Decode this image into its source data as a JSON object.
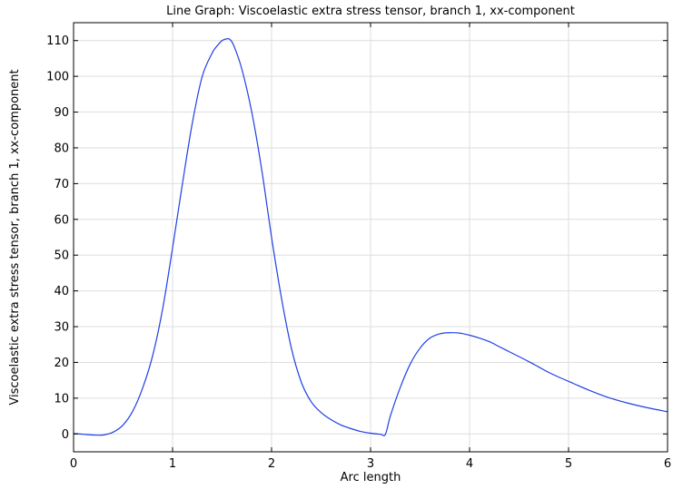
{
  "chart_data": {
    "type": "line",
    "title": "Line Graph: Viscoelastic extra stress tensor, branch 1, xx-component",
    "xlabel": "Arc length",
    "ylabel": "Viscoelastic extra stress tensor, branch 1, xx-component",
    "xlim": [
      0,
      6
    ],
    "ylim": [
      -5,
      115
    ],
    "x_ticks": [
      0,
      1,
      2,
      3,
      4,
      5,
      6
    ],
    "y_ticks": [
      0,
      10,
      20,
      30,
      40,
      50,
      60,
      70,
      80,
      90,
      100,
      110
    ],
    "grid": true,
    "legend": "none",
    "series": [
      {
        "color": "#1f3fe6",
        "x": [
          0,
          0.1,
          0.2,
          0.3,
          0.4,
          0.5,
          0.6,
          0.7,
          0.8,
          0.9,
          1.0,
          1.1,
          1.2,
          1.3,
          1.4,
          1.45,
          1.5,
          1.55,
          1.58,
          1.62,
          1.7,
          1.8,
          1.9,
          2.0,
          2.1,
          2.2,
          2.3,
          2.4,
          2.5,
          2.6,
          2.7,
          2.8,
          2.9,
          3.0,
          3.1,
          3.15,
          3.2,
          3.3,
          3.4,
          3.5,
          3.6,
          3.7,
          3.8,
          3.9,
          4.0,
          4.1,
          4.2,
          4.3,
          4.4,
          4.5,
          4.6,
          4.7,
          4.8,
          4.9,
          5.0,
          5.2,
          5.4,
          5.6,
          5.8,
          6.0
        ],
        "y": [
          0.1,
          -0.1,
          -0.3,
          -0.3,
          0.5,
          2.5,
          6.5,
          13,
          22,
          35,
          52,
          70,
          87,
          100,
          106.5,
          108.5,
          110,
          110.5,
          110.3,
          108.5,
          102,
          90,
          74,
          55,
          38,
          24,
          14.5,
          9,
          6,
          4,
          2.5,
          1.5,
          0.7,
          0.2,
          -0.1,
          -0.1,
          5,
          13,
          19.5,
          24,
          26.8,
          28,
          28.3,
          28.2,
          27.6,
          26.8,
          25.8,
          24.4,
          23,
          21.6,
          20.2,
          18.7,
          17.2,
          15.9,
          14.7,
          12.3,
          10.2,
          8.6,
          7.3,
          6.2
        ]
      }
    ]
  }
}
